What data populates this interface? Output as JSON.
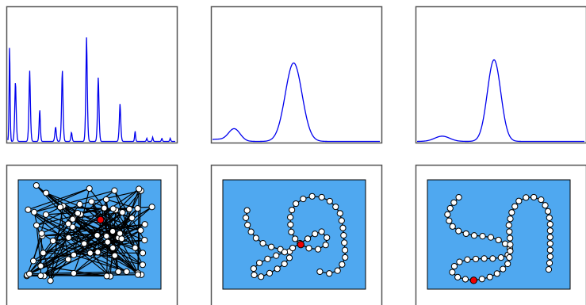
{
  "colors": {
    "background": "#ffffff",
    "frame": "#555555",
    "curve": "#0000ee",
    "network_bg": "#4fa8f0",
    "node_fill": "#ffffff",
    "node_stroke": "#000000",
    "highlight_node": "#ee0000",
    "edge": "#000000"
  },
  "panels": [
    {
      "name": "panel-1",
      "spectrum": {
        "type": "peaks",
        "peaks": [
          [
            0.01,
            0.95,
            0.004
          ],
          [
            0.045,
            0.58,
            0.006
          ],
          [
            0.13,
            0.68,
            0.006
          ],
          [
            0.19,
            0.31,
            0.005
          ],
          [
            0.285,
            0.14,
            0.006
          ],
          [
            0.325,
            0.69,
            0.006
          ],
          [
            0.38,
            0.09,
            0.005
          ],
          [
            0.47,
            1.0,
            0.006
          ],
          [
            0.54,
            0.62,
            0.006
          ],
          [
            0.67,
            0.36,
            0.006
          ],
          [
            0.76,
            0.1,
            0.004
          ],
          [
            0.83,
            0.03,
            0.004
          ],
          [
            0.865,
            0.04,
            0.004
          ],
          [
            0.92,
            0.03,
            0.004
          ],
          [
            0.97,
            0.03,
            0.004
          ]
        ]
      },
      "network": {
        "kind": "random",
        "node_count": 72,
        "highlight_index": 38
      }
    },
    {
      "name": "panel-2",
      "spectrum": {
        "type": "gaussians",
        "peaks": [
          [
            0.13,
            0.12,
            0.035
          ],
          [
            0.485,
            0.75,
            0.05
          ],
          [
            0.02,
            0.02,
            0.05
          ]
        ]
      },
      "network": {
        "kind": "chain",
        "highlight_index": 29,
        "path": [
          [
            0.17,
            0.28
          ],
          [
            0.16,
            0.36
          ],
          [
            0.18,
            0.44
          ],
          [
            0.22,
            0.52
          ],
          [
            0.28,
            0.58
          ],
          [
            0.35,
            0.62
          ],
          [
            0.42,
            0.64
          ],
          [
            0.48,
            0.66
          ],
          [
            0.46,
            0.74
          ],
          [
            0.4,
            0.8
          ],
          [
            0.32,
            0.86
          ],
          [
            0.24,
            0.9
          ],
          [
            0.2,
            0.84
          ],
          [
            0.24,
            0.77
          ],
          [
            0.32,
            0.72
          ],
          [
            0.4,
            0.68
          ],
          [
            0.47,
            0.64
          ],
          [
            0.54,
            0.58
          ],
          [
            0.62,
            0.52
          ],
          [
            0.68,
            0.46
          ],
          [
            0.73,
            0.52
          ],
          [
            0.72,
            0.6
          ],
          [
            0.66,
            0.64
          ],
          [
            0.58,
            0.62
          ],
          [
            0.52,
            0.57
          ],
          [
            0.48,
            0.48
          ],
          [
            0.47,
            0.36
          ],
          [
            0.49,
            0.24
          ],
          [
            0.55,
            0.18
          ],
          [
            0.62,
            0.15
          ],
          [
            0.7,
            0.16
          ],
          [
            0.77,
            0.21
          ],
          [
            0.82,
            0.3
          ],
          [
            0.84,
            0.42
          ],
          [
            0.85,
            0.56
          ],
          [
            0.86,
            0.7
          ],
          [
            0.82,
            0.82
          ],
          [
            0.76,
            0.86
          ],
          [
            0.68,
            0.84
          ]
        ],
        "samples": 52
      }
    },
    {
      "name": "panel-3",
      "spectrum": {
        "type": "gaussians",
        "peaks": [
          [
            0.15,
            0.05,
            0.045
          ],
          [
            0.46,
            0.78,
            0.04
          ]
        ]
      },
      "network": {
        "kind": "chain",
        "highlight_index": 25,
        "path": [
          [
            0.22,
            0.16
          ],
          [
            0.17,
            0.23
          ],
          [
            0.14,
            0.32
          ],
          [
            0.16,
            0.41
          ],
          [
            0.23,
            0.48
          ],
          [
            0.33,
            0.51
          ],
          [
            0.43,
            0.52
          ],
          [
            0.52,
            0.56
          ],
          [
            0.58,
            0.62
          ],
          [
            0.56,
            0.7
          ],
          [
            0.48,
            0.72
          ],
          [
            0.38,
            0.72
          ],
          [
            0.28,
            0.73
          ],
          [
            0.2,
            0.76
          ],
          [
            0.17,
            0.84
          ],
          [
            0.22,
            0.9
          ],
          [
            0.32,
            0.92
          ],
          [
            0.42,
            0.9
          ],
          [
            0.5,
            0.85
          ],
          [
            0.56,
            0.78
          ],
          [
            0.58,
            0.68
          ],
          [
            0.58,
            0.55
          ],
          [
            0.57,
            0.42
          ],
          [
            0.59,
            0.3
          ],
          [
            0.63,
            0.2
          ],
          [
            0.71,
            0.15
          ],
          [
            0.79,
            0.17
          ],
          [
            0.84,
            0.26
          ],
          [
            0.86,
            0.38
          ],
          [
            0.86,
            0.5
          ],
          [
            0.86,
            0.62
          ],
          [
            0.86,
            0.72
          ],
          [
            0.85,
            0.82
          ]
        ],
        "samples": 55
      }
    }
  ]
}
